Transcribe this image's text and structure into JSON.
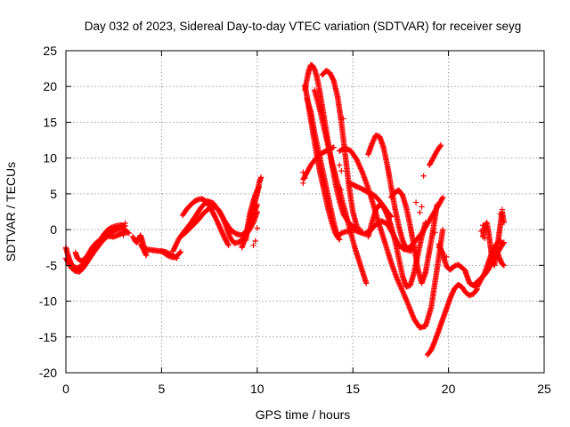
{
  "chart_data": {
    "type": "scatter",
    "title": "Day 032 of 2023, Sidereal Day-to-day VTEC variation (SDTVAR) for receiver seyg",
    "xlabel": "GPS time / hours",
    "ylabel": "SDTVAR / TECUs",
    "xlim": [
      0,
      25
    ],
    "ylim": [
      -20,
      25
    ],
    "xticks": [
      "0",
      "5",
      "10",
      "15",
      "20",
      "25"
    ],
    "yticks": [
      "-20",
      "-15",
      "-10",
      "-5",
      "0",
      "5",
      "10",
      "15",
      "20",
      "25"
    ],
    "grid": true,
    "marker": "+",
    "color": "#ff0000",
    "series": [
      {
        "name": "s1",
        "x": [
          0.0,
          0.1,
          0.2,
          0.3,
          0.4,
          0.6,
          0.8,
          1.0,
          1.2,
          1.4,
          1.6,
          1.8,
          2.0,
          2.2,
          2.4,
          2.6,
          2.8,
          3.0,
          3.1
        ],
        "y": [
          -2.5,
          -3.5,
          -4.3,
          -4.9,
          -5.2,
          -5.4,
          -5.1,
          -4.6,
          -3.9,
          -3.0,
          -2.2,
          -1.4,
          -0.6,
          0.0,
          0.3,
          0.5,
          0.6,
          0.6,
          0.5
        ]
      },
      {
        "name": "s2",
        "x": [
          0.0,
          0.1,
          0.2,
          0.3,
          0.5,
          0.7,
          0.9,
          1.1,
          1.3,
          1.5,
          1.7,
          1.9,
          2.1,
          2.3,
          2.5,
          2.7,
          2.9,
          3.1,
          3.2
        ],
        "y": [
          -4.0,
          -4.5,
          -5.0,
          -5.4,
          -5.8,
          -5.9,
          -5.4,
          -4.6,
          -3.8,
          -3.0,
          -2.3,
          -1.6,
          -1.1,
          -0.6,
          -0.2,
          0.0,
          0.1,
          0.0,
          -0.3
        ]
      },
      {
        "name": "s3",
        "x": [
          0.5,
          0.6,
          0.8,
          1.0,
          1.2,
          1.4,
          1.6,
          1.9,
          2.2,
          2.5,
          2.8,
          3.1,
          3.3
        ],
        "y": [
          -3.2,
          -4.0,
          -4.4,
          -4.1,
          -3.3,
          -2.4,
          -1.8,
          -1.2,
          -0.9,
          -1.0,
          -0.7,
          -0.3,
          -0.5
        ]
      },
      {
        "name": "s4",
        "x": [
          3.5,
          3.6,
          3.7,
          3.8,
          3.9,
          4.0,
          4.1,
          4.3,
          4.6,
          4.9,
          5.2,
          5.5,
          5.8
        ],
        "y": [
          -1.0,
          -1.5,
          -1.8,
          -1.3,
          -0.8,
          -1.6,
          -2.6,
          -2.8,
          -2.9,
          -3.0,
          -3.1,
          -3.5,
          -4.0
        ]
      },
      {
        "name": "s5",
        "x": [
          3.9,
          4.0,
          4.1,
          4.2
        ],
        "y": [
          -2.0,
          -2.5,
          -3.0,
          -3.6
        ]
      },
      {
        "name": "s6",
        "x": [
          5.0,
          5.2,
          5.4,
          5.6,
          5.8,
          6.0
        ],
        "y": [
          -3.0,
          -3.4,
          -3.7,
          -3.9,
          -3.7,
          -3.1
        ]
      },
      {
        "name": "s7",
        "x": [
          5.6,
          5.9,
          6.2,
          6.5,
          6.8,
          7.1,
          7.4,
          7.7,
          8.0,
          8.3,
          8.6,
          8.9,
          9.2,
          9.5,
          9.8,
          10.0
        ],
        "y": [
          -3.0,
          -1.3,
          -0.2,
          0.8,
          2.0,
          3.2,
          4.0,
          3.7,
          2.6,
          1.2,
          0.0,
          -0.6,
          -0.8,
          0.0,
          2.0,
          3.5
        ]
      },
      {
        "name": "s8",
        "x": [
          6.1,
          6.3,
          6.5,
          6.7,
          6.9,
          7.1,
          7.3,
          7.5,
          7.7,
          7.9,
          8.1,
          8.3,
          8.5
        ],
        "y": [
          2.0,
          2.8,
          3.4,
          3.9,
          4.2,
          4.3,
          4.0,
          3.3,
          2.3,
          1.2,
          0.0,
          -1.2,
          -2.2
        ]
      },
      {
        "name": "s9",
        "x": [
          6.0,
          6.3,
          6.6,
          6.9,
          7.2,
          7.5,
          7.8,
          8.0,
          8.2,
          8.4,
          8.6,
          8.8,
          9.0,
          9.2,
          9.4,
          9.6,
          9.8,
          10.0
        ],
        "y": [
          -1.0,
          -0.3,
          0.5,
          1.3,
          2.3,
          3.0,
          3.2,
          2.7,
          1.7,
          0.3,
          -1.2,
          -1.9,
          -1.8,
          -1.5,
          -0.8,
          0.0,
          1.0,
          2.5
        ]
      },
      {
        "name": "s10",
        "x": [
          9.2,
          9.4,
          9.6,
          9.8,
          10.0,
          10.1,
          10.2
        ],
        "y": [
          -2.5,
          -1.0,
          1.0,
          3.0,
          5.0,
          6.5,
          7.3
        ]
      },
      {
        "name": "s11",
        "x": [
          9.4,
          9.5,
          9.6,
          9.7,
          9.8,
          9.9,
          10.0,
          10.1
        ],
        "y": [
          -1.5,
          0.5,
          2.0,
          3.0,
          4.0,
          4.8,
          5.5,
          6.0
        ]
      },
      {
        "name": "s12",
        "x": [
          12.5,
          12.6,
          12.7,
          12.8,
          12.9,
          13.0,
          13.1,
          13.2,
          13.3,
          13.5,
          13.7,
          13.9,
          14.1,
          14.3,
          14.5,
          14.8,
          15.1,
          15.4
        ],
        "y": [
          19.5,
          21.0,
          22.2,
          23.0,
          22.9,
          22.4,
          21.5,
          20.3,
          18.8,
          15.6,
          12.3,
          9.2,
          6.3,
          4.0,
          2.2,
          0.9,
          0.2,
          0.0
        ]
      },
      {
        "name": "s13",
        "x": [
          12.6,
          12.8,
          13.0,
          13.2,
          13.4,
          13.6,
          13.8,
          14.0,
          14.2,
          14.4,
          14.6,
          14.8
        ],
        "y": [
          18.3,
          16.5,
          13.5,
          11.0,
          8.5,
          6.0,
          3.5,
          1.0,
          -1.0,
          -0.5,
          -0.3,
          -0.2
        ]
      },
      {
        "name": "s14",
        "x": [
          12.4,
          12.6,
          12.8,
          13.0,
          13.2,
          13.4,
          13.6,
          13.8,
          14.0
        ],
        "y": [
          7.0,
          8.0,
          9.0,
          9.7,
          10.3,
          10.7,
          11.0,
          11.3,
          11.5
        ]
      },
      {
        "name": "s15",
        "x": [
          12.5,
          12.7,
          12.9,
          13.1,
          13.3,
          13.5,
          13.7,
          13.9,
          14.1,
          14.3
        ],
        "y": [
          20.2,
          17.0,
          13.8,
          10.6,
          7.8,
          5.4,
          3.0,
          1.0,
          -0.6,
          -1.4
        ]
      },
      {
        "name": "s16",
        "x": [
          13.4,
          13.6,
          13.8,
          14.0,
          14.2,
          14.4,
          14.6,
          14.8,
          15.0,
          15.2
        ],
        "y": [
          21.6,
          22.2,
          21.9,
          20.8,
          18.6,
          15.0,
          10.5,
          6.0,
          2.5,
          0.5
        ]
      },
      {
        "name": "s17",
        "x": [
          13.0,
          13.3,
          13.6,
          13.9,
          14.2,
          14.5,
          14.8,
          15.1,
          15.4,
          15.7
        ],
        "y": [
          19.5,
          16.5,
          13.0,
          9.5,
          6.5,
          3.5,
          0.5,
          -2.5,
          -5.0,
          -7.5
        ]
      },
      {
        "name": "s18",
        "x": [
          14.3,
          14.6,
          14.9,
          15.2,
          15.5,
          15.8,
          16.1,
          16.4,
          16.7,
          17.0,
          17.3,
          17.6,
          17.9,
          18.2,
          18.5,
          18.8,
          19.1,
          19.4,
          19.7
        ],
        "y": [
          11.0,
          11.4,
          11.0,
          9.8,
          8.0,
          5.8,
          3.2,
          0.5,
          -2.0,
          -4.6,
          -6.8,
          -8.6,
          -10.5,
          -12.5,
          -13.7,
          -13.5,
          -10.8,
          -5.5,
          0.0
        ]
      },
      {
        "name": "s19",
        "x": [
          15.8,
          16.0,
          16.2,
          16.4,
          16.6,
          16.8,
          17.0,
          17.2,
          17.4,
          17.6,
          17.8,
          18.0,
          18.2
        ],
        "y": [
          10.5,
          12.0,
          13.2,
          13.0,
          11.5,
          9.0,
          6.0,
          3.0,
          0.5,
          -1.5,
          -2.8,
          -3.0,
          -2.5
        ]
      },
      {
        "name": "s20",
        "x": [
          15.0,
          15.3,
          15.6,
          15.9,
          16.2,
          16.5,
          16.8,
          17.1,
          17.4,
          17.7,
          18.0,
          18.3,
          18.6,
          18.9,
          19.2,
          19.5,
          19.7
        ],
        "y": [
          0.0,
          -0.3,
          -0.6,
          -0.2,
          0.7,
          1.2,
          0.8,
          -0.6,
          -2.2,
          -2.8,
          -2.4,
          -1.5,
          -0.5,
          0.8,
          2.2,
          3.5,
          4.5
        ]
      },
      {
        "name": "s21",
        "x": [
          15.8,
          16.0,
          16.2,
          16.4,
          16.6,
          16.8,
          17.0,
          17.2,
          17.4,
          17.6,
          17.8,
          18.0,
          18.2,
          18.4,
          18.6,
          18.8
        ],
        "y": [
          -1.0,
          1.0,
          2.8,
          3.5,
          3.2,
          2.0,
          0.5,
          -1.5,
          -4.0,
          -6.5,
          -8.0,
          -7.8,
          -6.0,
          -3.5,
          -1.0,
          1.0
        ]
      },
      {
        "name": "s22",
        "x": [
          17.0,
          17.2,
          17.4,
          17.6,
          17.8,
          18.0,
          18.2,
          18.4,
          18.6,
          18.8,
          19.0,
          19.2,
          19.4
        ],
        "y": [
          4.5,
          5.2,
          5.5,
          4.8,
          3.0,
          0.5,
          -2.5,
          -5.5,
          -7.5,
          -6.0,
          -3.0,
          0.0,
          3.5
        ]
      },
      {
        "name": "s23",
        "x": [
          14.8,
          15.0,
          15.2,
          15.4,
          15.6,
          15.8,
          16.0,
          16.2,
          16.4,
          16.6,
          16.8,
          17.0
        ],
        "y": [
          6.5,
          6.3,
          6.0,
          5.8,
          5.5,
          5.2,
          5.0,
          4.6,
          4.0,
          3.3,
          2.5,
          1.8
        ]
      },
      {
        "name": "s24",
        "x": [
          19.0,
          19.2,
          19.4,
          19.6
        ],
        "y": [
          9.0,
          10.0,
          11.0,
          11.8
        ]
      },
      {
        "name": "s25",
        "x": [
          18.9,
          19.1,
          19.3,
          19.5,
          19.7,
          19.9,
          20.1,
          20.3,
          20.5,
          20.7,
          20.9,
          21.1,
          21.3,
          21.5
        ],
        "y": [
          -17.5,
          -16.8,
          -15.5,
          -14.0,
          -12.5,
          -11.0,
          -9.5,
          -8.3,
          -7.7,
          -8.0,
          -8.8,
          -9.2,
          -9.0,
          -8.3
        ]
      },
      {
        "name": "s26",
        "x": [
          19.5,
          19.7,
          19.9,
          20.1,
          20.3,
          20.5,
          20.7,
          20.9
        ],
        "y": [
          -2.0,
          -3.5,
          -5.2,
          -5.6,
          -5.1,
          -4.9,
          -5.3,
          -5.8
        ]
      },
      {
        "name": "s27",
        "x": [
          20.9,
          21.1,
          21.3,
          21.5,
          21.7,
          21.9,
          22.1,
          22.3,
          22.5,
          22.7,
          22.9
        ],
        "y": [
          -6.0,
          -7.5,
          -7.8,
          -7.3,
          -6.8,
          -6.3,
          -5.5,
          -4.5,
          -3.5,
          -2.6,
          -1.8
        ]
      },
      {
        "name": "s28",
        "x": [
          21.3,
          21.5,
          21.7,
          21.9,
          22.1,
          22.3,
          22.5,
          22.7,
          22.8
        ],
        "y": [
          -7.8,
          -8.0,
          -7.0,
          -6.0,
          -4.5,
          -3.0,
          -2.0,
          -1.5,
          -2.0
        ]
      },
      {
        "name": "s29",
        "x": [
          21.8,
          21.9,
          22.0,
          22.1,
          22.2,
          22.3,
          22.4,
          22.5,
          22.6,
          22.7,
          22.8,
          22.9
        ],
        "y": [
          -1.0,
          0.5,
          1.0,
          -0.5,
          -2.5,
          -4.5,
          -5.0,
          -3.0,
          -1.5,
          0.5,
          2.5,
          1.0
        ]
      },
      {
        "name": "s30",
        "x": [
          22.5,
          22.6,
          22.7,
          22.8,
          22.9
        ],
        "y": [
          -2.5,
          -3.5,
          -4.2,
          -4.8,
          -5.0
        ]
      }
    ],
    "scattered": [
      [
        14.5,
        15.5
      ],
      [
        14.4,
        8.2
      ],
      [
        14.3,
        9.0
      ],
      [
        14.4,
        5.6
      ],
      [
        14.2,
        6.0
      ],
      [
        18.7,
        7.5
      ],
      [
        18.3,
        3.8
      ],
      [
        18.6,
        3.2
      ],
      [
        18.5,
        2.4
      ],
      [
        19.3,
        -0.4
      ],
      [
        19.5,
        -2.5
      ],
      [
        19.7,
        -3.2
      ],
      [
        19.9,
        -3.8
      ],
      [
        22.8,
        2.8
      ],
      [
        22.7,
        2.2
      ],
      [
        22.8,
        1.8
      ],
      [
        21.8,
        0.6
      ],
      [
        21.7,
        -0.2
      ],
      [
        21.9,
        -1.2
      ],
      [
        9.9,
        -1.6
      ],
      [
        10.0,
        0.2
      ],
      [
        9.8,
        -2.2
      ],
      [
        3.0,
        -0.8
      ],
      [
        3.1,
        0.9
      ],
      [
        2.9,
        0.6
      ],
      [
        12.4,
        8.0
      ],
      [
        12.4,
        6.5
      ],
      [
        12.5,
        7.2
      ]
    ]
  }
}
